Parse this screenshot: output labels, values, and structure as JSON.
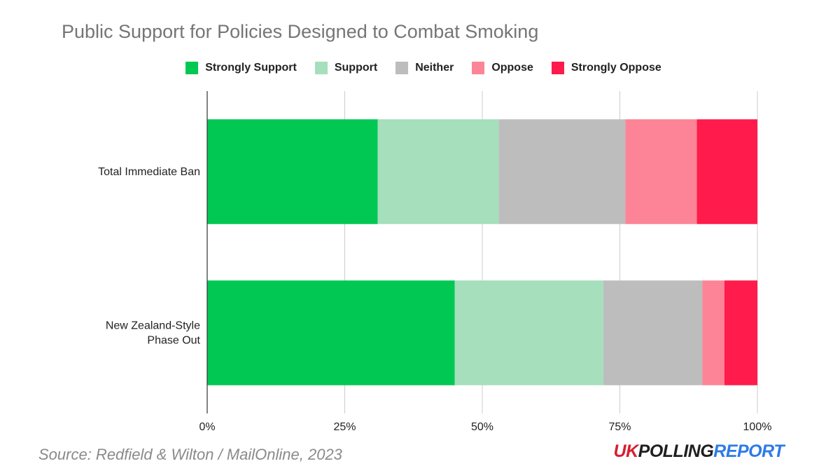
{
  "chart_data": {
    "type": "bar",
    "orientation": "horizontal",
    "stacked": true,
    "title": "Public Support for Policies Designed to Combat Smoking",
    "categories": [
      [
        "Total Immediate Ban"
      ],
      [
        "New Zealand-Style",
        "Phase Out"
      ]
    ],
    "series": [
      {
        "name": "Strongly Support",
        "color": "#00c853",
        "values": [
          31,
          45
        ]
      },
      {
        "name": "Support",
        "color": "#a5dfbc",
        "values": [
          22,
          27
        ]
      },
      {
        "name": "Neither",
        "color": "#bdbdbd",
        "values": [
          23,
          18
        ]
      },
      {
        "name": "Oppose",
        "color": "#fc8496",
        "values": [
          13,
          4
        ]
      },
      {
        "name": "Strongly Oppose",
        "color": "#ff1b4b",
        "values": [
          11,
          6
        ]
      }
    ],
    "xlim": [
      0,
      100
    ],
    "x_ticks": [
      0,
      25,
      50,
      75,
      100
    ],
    "x_tick_labels": [
      "0%",
      "25%",
      "50%",
      "75%",
      "100%"
    ],
    "grid": true,
    "legend_position": "top"
  },
  "footer": {
    "source": "Source: Redfield & Wilton / MailOnline, 2023",
    "brand": {
      "uk": "UK",
      "polling": "POLLING",
      "report": "REPORT"
    }
  }
}
